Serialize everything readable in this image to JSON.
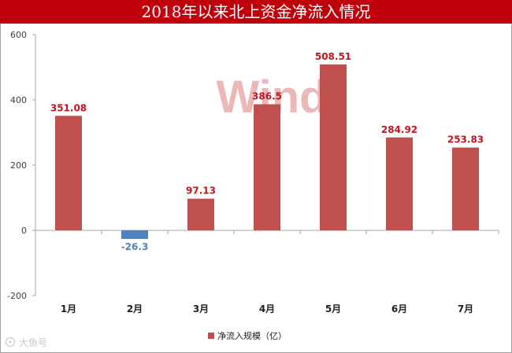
{
  "title": "2018年以来北上资金净流入情况",
  "watermark": "Wind",
  "footer_brand": "大鱼号",
  "colors": {
    "title_bg": "#c0000a",
    "positive_bar": "#c0504d",
    "negative_bar": "#4f81bd",
    "positive_label": "#c0141e",
    "negative_label": "#4f81bd",
    "watermark": "#e6a0a0"
  },
  "chart_data": {
    "type": "bar",
    "categories": [
      "1月",
      "2月",
      "3月",
      "4月",
      "5月",
      "6月",
      "7月"
    ],
    "series": [
      {
        "name": "净流入规模（亿）",
        "values": [
          351.08,
          -26.3,
          97.13,
          386.5,
          508.51,
          284.92,
          253.83
        ]
      }
    ],
    "data_labels": [
      "351.08",
      "-26.3",
      "97.13",
      "386.5",
      "508.51",
      "284.92",
      "253.83"
    ],
    "y_ticks": [
      "-200",
      "0",
      "200",
      "400",
      "600"
    ],
    "ylim": [
      -200,
      600
    ],
    "grid": false,
    "legend": "bottom-center"
  }
}
